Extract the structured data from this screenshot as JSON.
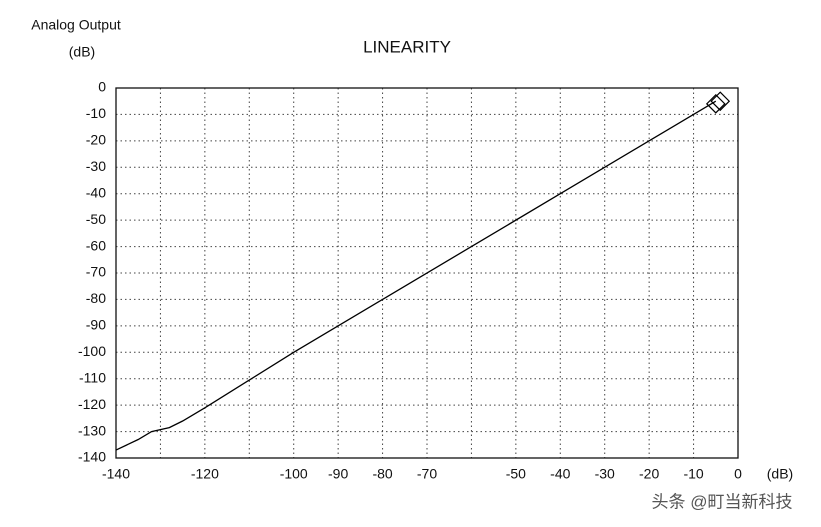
{
  "chart_data": {
    "type": "line",
    "title": "LINEARITY",
    "y_label": [
      "Analog Output",
      "(dB)"
    ],
    "x_label": "(dB)",
    "annotation": "头条 @町当新科技",
    "xlim": [
      -140,
      0
    ],
    "ylim": [
      -140,
      0
    ],
    "xticks": [
      -140,
      -120,
      -100,
      -90,
      -80,
      -70,
      -50,
      -40,
      -30,
      -20,
      -10,
      0
    ],
    "x_unlabeled_gridlines": [
      -130,
      -110,
      -60
    ],
    "yticks": [
      0,
      -10,
      -20,
      -30,
      -40,
      -50,
      -60,
      -70,
      -80,
      -90,
      -100,
      -110,
      -120,
      -130,
      -140
    ],
    "grid": true,
    "series": [
      {
        "color": "#000000",
        "x": [
          -140,
          -135,
          -132,
          -128,
          -125,
          -120,
          -110,
          -100,
          -80,
          -60,
          -40,
          -20,
          -5
        ],
        "values": [
          -137,
          -133,
          -130,
          -128.5,
          -126,
          -121,
          -110.5,
          -100,
          -80,
          -60,
          -40,
          -20,
          -5
        ]
      },
      {
        "color": "#000000",
        "marker": "diamond",
        "x": [
          -5,
          -4
        ],
        "values": [
          -6,
          -5
        ]
      }
    ]
  }
}
